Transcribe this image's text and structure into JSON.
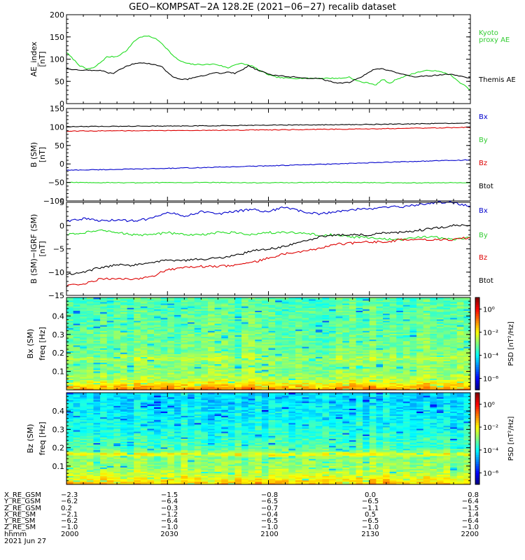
{
  "figure": {
    "title": "GEO−KOMPSAT−2A 128.2E (2021−06−27) recalib dataset"
  },
  "colors": {
    "black": "#000000",
    "green": "#22dd22",
    "legend_green": "#33cc33",
    "blue": "#0000cc",
    "red": "#dd0000"
  },
  "chart_data": [
    {
      "type": "line",
      "panel": "AE index",
      "ylabel": "AE_index",
      "yunit": "[nT]",
      "ylim": [
        0,
        200
      ],
      "yticks": [
        "0",
        "50",
        "100",
        "150",
        "200"
      ],
      "ytick_values": [
        0,
        50,
        100,
        150,
        200
      ],
      "xlim": [
        0,
        120
      ],
      "x_unit": "minutes after 2021-06-27 20:00 UT",
      "series": [
        {
          "name": "Kyoto proxy AE",
          "legend_lines": [
            "Kyoto",
            "proxy AE"
          ],
          "color": "#22dd22",
          "x": [
            0,
            2,
            4,
            6,
            8,
            10,
            12,
            15,
            18,
            20,
            22,
            24,
            26,
            28,
            30,
            32,
            34,
            36,
            38,
            40,
            42,
            44,
            46,
            48,
            50,
            52,
            55,
            58,
            60,
            62,
            64,
            66,
            68,
            70,
            72,
            74,
            76,
            78,
            80,
            82,
            84,
            86,
            88,
            90,
            92,
            94,
            96,
            98,
            100,
            102,
            104,
            106,
            108,
            110,
            112,
            114,
            116,
            118,
            120
          ],
          "y": [
            115,
            100,
            85,
            78,
            80,
            92,
            105,
            106,
            120,
            140,
            150,
            152,
            148,
            138,
            122,
            105,
            95,
            90,
            88,
            88,
            88,
            89,
            85,
            80,
            88,
            90,
            85,
            72,
            65,
            60,
            58,
            57,
            57,
            57,
            57,
            57,
            57,
            57,
            57,
            57,
            60,
            52,
            48,
            46,
            42,
            55,
            45,
            55,
            60,
            65,
            70,
            73,
            75,
            73,
            70,
            65,
            52,
            42,
            30
          ]
        },
        {
          "name": "Themis AE",
          "legend_lines": [
            "Themis AE"
          ],
          "color": "#000000",
          "x": [
            0,
            2,
            4,
            6,
            8,
            10,
            12,
            14,
            16,
            18,
            20,
            22,
            24,
            26,
            28,
            30,
            32,
            34,
            36,
            38,
            40,
            42,
            44,
            46,
            48,
            50,
            52,
            54,
            56,
            58,
            60,
            62,
            64,
            66,
            68,
            70,
            72,
            74,
            76,
            78,
            80,
            82,
            84,
            86,
            88,
            90,
            92,
            94,
            96,
            98,
            100,
            102,
            104,
            106,
            108,
            110,
            112,
            114,
            116,
            118,
            120
          ],
          "y": [
            78,
            77,
            76,
            75,
            75,
            75,
            70,
            68,
            78,
            85,
            90,
            92,
            90,
            88,
            85,
            70,
            58,
            55,
            55,
            58,
            62,
            65,
            70,
            68,
            72,
            68,
            75,
            85,
            78,
            72,
            67,
            63,
            62,
            60,
            60,
            58,
            57,
            57,
            55,
            50,
            47,
            46,
            48,
            55,
            62,
            72,
            78,
            78,
            74,
            70,
            66,
            62,
            60,
            62,
            62,
            64,
            65,
            66,
            63,
            60,
            58
          ]
        }
      ]
    },
    {
      "type": "line",
      "panel": "B (SM)",
      "ylabel": "B (SM)",
      "yunit": "[nT]",
      "ylim": [
        -100,
        150
      ],
      "yticks": [
        "−100",
        "−50",
        "0",
        "50",
        "100",
        "150"
      ],
      "ytick_values": [
        -100,
        -50,
        0,
        50,
        100,
        150
      ],
      "xlim": [
        0,
        120
      ],
      "series": [
        {
          "name": "Bx",
          "color": "#0000cc",
          "x": [
            0,
            20,
            40,
            60,
            80,
            100,
            120
          ],
          "y": [
            -17,
            -14,
            -10,
            -5,
            0,
            6,
            11
          ]
        },
        {
          "name": "By",
          "color": "#22dd22",
          "x": [
            0,
            20,
            40,
            60,
            80,
            100,
            120
          ],
          "y": [
            -50,
            -51,
            -50,
            -51,
            -50,
            -51,
            -51
          ]
        },
        {
          "name": "Bz",
          "color": "#dd0000",
          "x": [
            0,
            20,
            40,
            60,
            80,
            100,
            120
          ],
          "y": [
            89,
            90,
            91,
            92,
            94,
            96,
            99
          ]
        },
        {
          "name": "Btot",
          "color": "#000000",
          "x": [
            0,
            20,
            40,
            60,
            80,
            100,
            120
          ],
          "y": [
            101,
            102,
            103,
            105,
            106,
            108,
            111
          ]
        }
      ]
    },
    {
      "type": "line",
      "panel": "B (SM) - IGRF (SM)",
      "ylabel": "B (SM)−IGRF (SM)",
      "yunit": "[nT]",
      "ylim": [
        -15,
        5
      ],
      "yticks": [
        "−15",
        "−10",
        "−5",
        "0",
        "5"
      ],
      "ytick_values": [
        -15,
        -10,
        -5,
        0,
        5
      ],
      "xlim": [
        0,
        120
      ],
      "series": [
        {
          "name": "Bx",
          "color": "#0000cc",
          "x": [
            0,
            5,
            10,
            15,
            20,
            25,
            30,
            35,
            40,
            45,
            50,
            55,
            60,
            65,
            70,
            75,
            80,
            85,
            90,
            95,
            100,
            105,
            110,
            115,
            120
          ],
          "y": [
            1,
            1.5,
            1,
            1.2,
            1,
            1.5,
            3,
            2,
            3,
            2.5,
            3,
            3.5,
            3,
            4,
            3,
            2.5,
            3,
            3.5,
            3.5,
            4,
            4,
            4.5,
            5,
            5,
            4
          ]
        },
        {
          "name": "By",
          "color": "#22dd22",
          "x": [
            0,
            5,
            10,
            15,
            20,
            25,
            30,
            35,
            40,
            45,
            50,
            55,
            60,
            65,
            70,
            75,
            80,
            85,
            90,
            95,
            100,
            105,
            110,
            115,
            120
          ],
          "y": [
            -2,
            -1.5,
            -1,
            -1.5,
            -2,
            -2,
            -1.5,
            -2,
            -2,
            -1.5,
            -1.5,
            -2,
            -1.5,
            -1.5,
            -1.5,
            -2,
            -2,
            -2.5,
            -2.5,
            -3,
            -3,
            -2.5,
            -2.5,
            -3,
            -2.5
          ]
        },
        {
          "name": "Bz",
          "color": "#dd0000",
          "x": [
            0,
            5,
            10,
            15,
            20,
            25,
            30,
            35,
            40,
            45,
            50,
            55,
            60,
            65,
            70,
            75,
            80,
            85,
            90,
            95,
            100,
            105,
            110,
            115,
            120
          ],
          "y": [
            -13,
            -12.5,
            -11.5,
            -11.5,
            -11.5,
            -11,
            -9.5,
            -9,
            -8.8,
            -8.8,
            -8.5,
            -8,
            -7,
            -6,
            -5.5,
            -5,
            -4,
            -3.8,
            -3.5,
            -3.5,
            -3,
            -3,
            -3,
            -3,
            -2.5
          ]
        },
        {
          "name": "Btot",
          "color": "#000000",
          "x": [
            0,
            5,
            10,
            15,
            20,
            25,
            30,
            35,
            40,
            45,
            50,
            55,
            60,
            65,
            70,
            75,
            80,
            85,
            90,
            95,
            100,
            105,
            110,
            115,
            120
          ],
          "y": [
            -10.5,
            -10,
            -9,
            -8.5,
            -8.5,
            -8,
            -7.5,
            -7.5,
            -7.2,
            -7,
            -6.5,
            -5.5,
            -5,
            -4.5,
            -3.5,
            -2.5,
            -2,
            -2,
            -2,
            -1.5,
            -1.5,
            -1,
            -0.5,
            0,
            0
          ]
        }
      ]
    },
    {
      "type": "heatmap",
      "panel": "Bx spectrogram",
      "ylabel": "Bx (SM)",
      "yunit": "freq [Hz]",
      "ylim": [
        0,
        0.5
      ],
      "yticks": [
        "0.1",
        "0.2",
        "0.3",
        "0.4"
      ],
      "ytick_values": [
        0.1,
        0.2,
        0.3,
        0.4
      ],
      "colorbar": {
        "label": "PSD [nT²/Hz]",
        "ticks": [
          "10⁰",
          "10⁻²",
          "10⁻⁴",
          "10⁻⁶"
        ],
        "tick_exponents": [
          0,
          -2,
          -4,
          -6
        ],
        "zlim_exponent": [
          -7,
          1
        ]
      },
      "psd_profile": {
        "freq": [
          0.0,
          0.03,
          0.06,
          0.1,
          0.15,
          0.17,
          0.2,
          0.3,
          0.4,
          0.5
        ],
        "log10_psd": [
          -1,
          -1.8,
          -2.6,
          -2.9,
          -3.0,
          -2.6,
          -3.1,
          -3.2,
          -3.3,
          -3.4
        ]
      }
    },
    {
      "type": "heatmap",
      "panel": "Bz spectrogram",
      "ylabel": "Bz (SM)",
      "yunit": "freq [Hz]",
      "ylim": [
        0,
        0.5
      ],
      "yticks": [
        "0.1",
        "0.2",
        "0.3",
        "0.4"
      ],
      "ytick_values": [
        0.1,
        0.2,
        0.3,
        0.4
      ],
      "colorbar": {
        "label": "PSD [nT²/Hz]",
        "ticks": [
          "10⁰",
          "10⁻²",
          "10⁻⁴",
          "10⁻⁶"
        ],
        "tick_exponents": [
          0,
          -2,
          -4,
          -6
        ],
        "zlim_exponent": [
          -7,
          1
        ]
      },
      "psd_profile": {
        "freq": [
          0.0,
          0.03,
          0.06,
          0.1,
          0.15,
          0.165,
          0.18,
          0.2,
          0.3,
          0.4,
          0.5
        ],
        "log10_psd": [
          -1.4,
          -2.0,
          -2.5,
          -2.8,
          -2.9,
          -1.9,
          -3.0,
          -3.4,
          -3.8,
          -4.1,
          -4.3
        ]
      }
    }
  ],
  "orbit_table": {
    "row_labels": [
      "X_RE_GSM",
      "Y_RE_GSM",
      "Z_RE_GSM",
      "X_RE_SM",
      "Y_RE_SM",
      "Z_RE_SM",
      "hhmm",
      "2021 Jun 27"
    ],
    "columns": [
      [
        "−2.3",
        "−6.2",
        "0.2",
        "−2.1",
        "−6.2",
        "−1.0",
        "2000"
      ],
      [
        "−1.5",
        "−6.4",
        "−0.3",
        "−1.2",
        "−6.4",
        "−1.0",
        "2030"
      ],
      [
        "−0.8",
        "−6.5",
        "−0.7",
        "−0.4",
        "−6.5",
        "−1.0",
        "2100"
      ],
      [
        "0.0",
        "−6.5",
        "−1.1",
        "0.5",
        "−6.5",
        "−1.0",
        "2130"
      ],
      [
        "0.8",
        "−6.4",
        "−1.5",
        "1.4",
        "−6.4",
        "−1.0",
        "2200"
      ]
    ]
  }
}
